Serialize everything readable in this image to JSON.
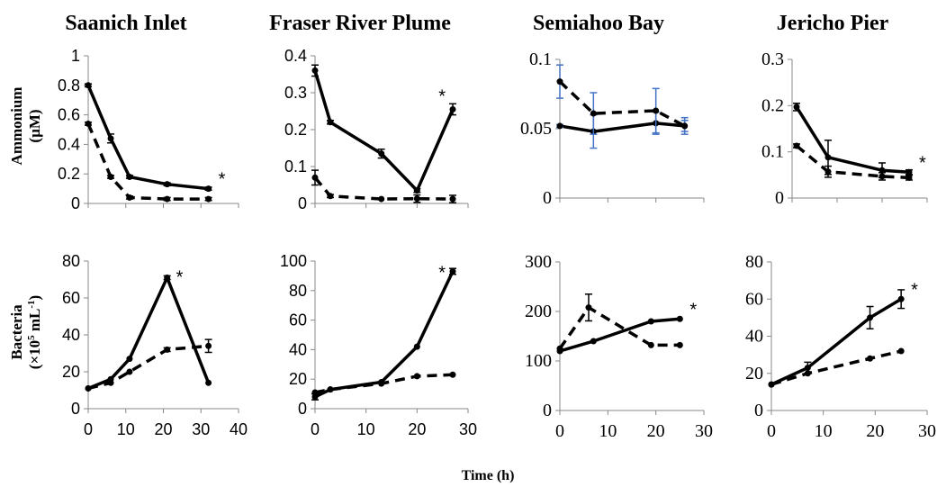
{
  "figure": {
    "column_titles": [
      "Saanich Inlet",
      "Fraser River Plume",
      "Semiahoo Bay",
      "Jericho Pier"
    ],
    "row_labels": [
      {
        "line1": "Ammonium",
        "line2": "(µM)"
      },
      {
        "line1": "Bacteria",
        "line2_pre": "(×10",
        "line2_sup": "5",
        "line2_mid": " mL",
        "line2_sup2": "-1",
        "line2_post": ")"
      }
    ],
    "x_label": "Time (h)",
    "significance_marker": "*"
  },
  "chart_data": [
    {
      "type": "line",
      "title": "Saanich Inlet",
      "ylabel": "Ammonium (µM)",
      "xlabel": "",
      "xlim": [
        0,
        40
      ],
      "ylim": [
        0,
        1
      ],
      "yticks": [
        "0",
        "0.2",
        "0.4",
        "0.6",
        "0.8",
        "1"
      ],
      "xticks": [],
      "grid": false,
      "significant": true,
      "series": [
        {
          "style": "solid",
          "x": [
            0,
            6,
            11,
            21,
            32
          ],
          "y": [
            0.8,
            0.44,
            0.18,
            0.13,
            0.1
          ],
          "err": [
            0.01,
            0.03,
            0.01,
            0.01,
            0.01
          ]
        },
        {
          "style": "dashed",
          "x": [
            0,
            6,
            11,
            21,
            32
          ],
          "y": [
            0.54,
            0.18,
            0.04,
            0.03,
            0.03
          ],
          "err": [
            0.01,
            0.01,
            0.01,
            0.01,
            0.01
          ]
        }
      ]
    },
    {
      "type": "line",
      "title": "Fraser River Plume",
      "ylabel": "",
      "xlabel": "",
      "xlim": [
        0,
        30
      ],
      "ylim": [
        0,
        0.4
      ],
      "yticks": [
        "0",
        "0.1",
        "0.2",
        "0.3",
        "0.4"
      ],
      "xticks": [],
      "grid": false,
      "significant": true,
      "series": [
        {
          "style": "solid",
          "x": [
            0,
            3,
            13,
            20,
            27
          ],
          "y": [
            0.36,
            0.22,
            0.135,
            0.035,
            0.255
          ],
          "err": [
            0.015,
            0.005,
            0.012,
            0.005,
            0.015
          ]
        },
        {
          "style": "dashed",
          "x": [
            0,
            3,
            13,
            20,
            27
          ],
          "y": [
            0.07,
            0.02,
            0.012,
            0.013,
            0.012
          ],
          "err": [
            0.02,
            0.004,
            0.003,
            0.01,
            0.01
          ]
        }
      ]
    },
    {
      "type": "line",
      "title": "Semiahoo Bay",
      "ylabel": "",
      "xlabel": "",
      "xlim": [
        0,
        30
      ],
      "ylim": [
        0,
        0.1
      ],
      "yticks": [
        "0",
        "0.05",
        "0.1"
      ],
      "xticks": [],
      "grid": false,
      "significant": false,
      "series": [
        {
          "style": "solid",
          "x": [
            0,
            7,
            20,
            26
          ],
          "y": [
            0.052,
            0.048,
            0.054,
            0.052
          ],
          "err": [
            0.001,
            0.012,
            0.008,
            0.004
          ]
        },
        {
          "style": "dashed",
          "x": [
            0,
            7,
            20,
            26
          ],
          "y": [
            0.084,
            0.061,
            0.063,
            0.052
          ],
          "err": [
            0.012,
            0.015,
            0.016,
            0.006
          ]
        }
      ]
    },
    {
      "type": "line",
      "title": "Jericho Pier",
      "ylabel": "",
      "xlabel": "",
      "xlim": [
        0,
        30
      ],
      "ylim": [
        0,
        0.3
      ],
      "yticks": [
        "0",
        "0.1",
        "0.2",
        "0.3"
      ],
      "xticks": [],
      "grid": false,
      "significant": true,
      "series": [
        {
          "style": "solid",
          "x": [
            1,
            8,
            20,
            26
          ],
          "y": [
            0.197,
            0.088,
            0.06,
            0.056
          ],
          "err": [
            0.008,
            0.037,
            0.016,
            0.005
          ]
        },
        {
          "style": "dashed",
          "x": [
            1,
            8,
            20,
            26
          ],
          "y": [
            0.113,
            0.057,
            0.047,
            0.044
          ],
          "err": [
            0.004,
            0.012,
            0.008,
            0.005
          ]
        }
      ]
    },
    {
      "type": "line",
      "title": "",
      "ylabel": "Bacteria (×10^5 mL^-1)",
      "xlabel": "",
      "xlim": [
        0,
        40
      ],
      "ylim": [
        0,
        80
      ],
      "yticks": [
        "0",
        "20",
        "40",
        "60",
        "80"
      ],
      "xticks": [
        "0",
        "10",
        "20",
        "30",
        "40"
      ],
      "grid": false,
      "significant": true,
      "series": [
        {
          "style": "solid",
          "x": [
            0,
            6,
            11,
            21,
            32
          ],
          "y": [
            11,
            16,
            27,
            71,
            14
          ],
          "err": [
            0.5,
            0.5,
            0.5,
            1,
            0.5
          ]
        },
        {
          "style": "dashed",
          "x": [
            0,
            6,
            11,
            21,
            32
          ],
          "y": [
            11,
            14,
            20,
            32,
            34
          ],
          "err": [
            0.5,
            0.5,
            0.5,
            1,
            3.5
          ]
        }
      ]
    },
    {
      "type": "line",
      "title": "",
      "ylabel": "",
      "xlabel": "",
      "xlim": [
        0,
        30
      ],
      "ylim": [
        0,
        100
      ],
      "yticks": [
        "0",
        "20",
        "40",
        "60",
        "80",
        "100"
      ],
      "xticks": [
        "0",
        "10",
        "20",
        "30"
      ],
      "grid": false,
      "significant": true,
      "series": [
        {
          "style": "solid",
          "x": [
            0,
            3,
            13,
            20,
            27
          ],
          "y": [
            8,
            13,
            18,
            42,
            93
          ],
          "err": [
            2,
            0.5,
            0.5,
            0.5,
            2
          ]
        },
        {
          "style": "dashed",
          "x": [
            0,
            3,
            13,
            20,
            27
          ],
          "y": [
            11,
            13,
            17,
            22,
            23
          ],
          "err": [
            0.5,
            0.5,
            0.5,
            0.5,
            0.5
          ]
        }
      ]
    },
    {
      "type": "line",
      "title": "",
      "ylabel": "",
      "xlabel": "",
      "xlim": [
        0,
        30
      ],
      "ylim": [
        0,
        300
      ],
      "yticks": [
        "0",
        "100",
        "200",
        "300"
      ],
      "xticks": [
        "0",
        "10",
        "20",
        "30"
      ],
      "grid": false,
      "significant": true,
      "series": [
        {
          "style": "solid",
          "x": [
            0,
            7,
            19,
            25
          ],
          "y": [
            120,
            140,
            180,
            185
          ],
          "err": [
            1,
            1,
            1,
            1
          ]
        },
        {
          "style": "dashed",
          "x": [
            0,
            6,
            19,
            25
          ],
          "y": [
            125,
            208,
            132,
            132
          ],
          "err": [
            1,
            27,
            1,
            1
          ]
        }
      ]
    },
    {
      "type": "line",
      "title": "",
      "ylabel": "",
      "xlabel": "",
      "xlim": [
        0,
        30
      ],
      "ylim": [
        0,
        80
      ],
      "yticks": [
        "0",
        "20",
        "40",
        "60",
        "80"
      ],
      "xticks": [
        "0",
        "10",
        "20",
        "30"
      ],
      "grid": false,
      "significant": true,
      "series": [
        {
          "style": "solid",
          "x": [
            0,
            7,
            19,
            25
          ],
          "y": [
            14,
            23,
            50,
            60
          ],
          "err": [
            0.5,
            3,
            6,
            5
          ]
        },
        {
          "style": "dashed",
          "x": [
            0,
            7,
            19,
            25
          ],
          "y": [
            14,
            20,
            28,
            32
          ],
          "err": [
            0.5,
            0.5,
            0.5,
            0.5
          ]
        }
      ]
    }
  ],
  "colors": {
    "ink": "#000000",
    "error_bar_blue": "#4472c4"
  }
}
